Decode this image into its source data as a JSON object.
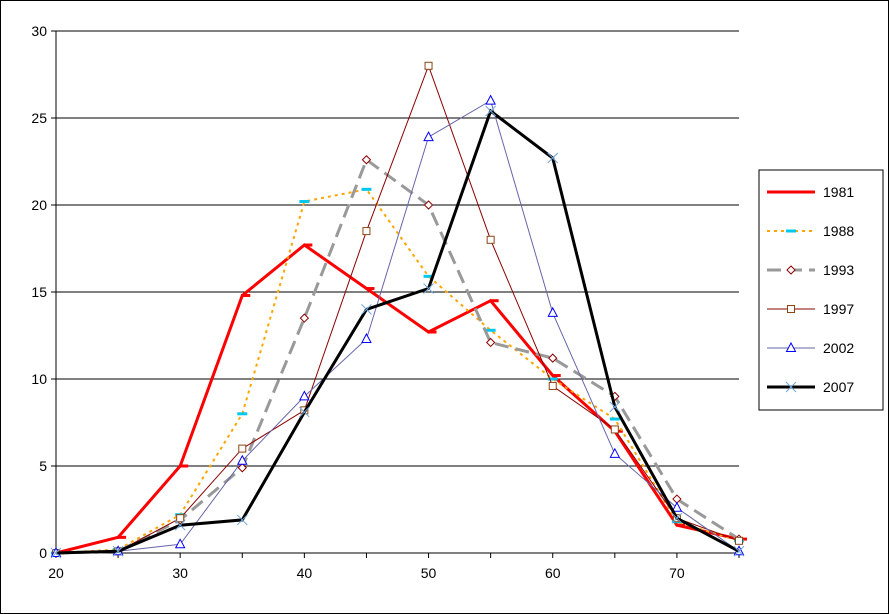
{
  "chart_data": {
    "type": "line",
    "title": "",
    "xlabel": "",
    "ylabel": "",
    "xlim": [
      20,
      75
    ],
    "ylim": [
      0,
      30
    ],
    "x_ticks": [
      20,
      30,
      40,
      50,
      60,
      70
    ],
    "y_ticks": [
      0,
      5,
      10,
      15,
      20,
      25,
      30
    ],
    "x_tick_labels": [
      "20",
      "30",
      "40",
      "50",
      "60",
      "70"
    ],
    "y_tick_labels": [
      "0",
      "5",
      "10",
      "15",
      "20",
      "25",
      "30"
    ],
    "grid": "horizontal",
    "legend_position": "right",
    "x": [
      20,
      25,
      30,
      35,
      40,
      45,
      50,
      55,
      60,
      65,
      70,
      75
    ],
    "series": [
      {
        "name": "1981",
        "color": "#ff0000",
        "dash": "solid",
        "marker": "dash",
        "width": 3,
        "values": [
          0,
          0.9,
          5,
          14.8,
          17.7,
          15.2,
          12.7,
          14.5,
          10.2,
          7,
          1.6,
          0.8
        ]
      },
      {
        "name": "1988",
        "color": "#ffa500",
        "dash": "dot",
        "marker": "dash-cyan",
        "width": 2,
        "values": [
          0,
          0.2,
          2.2,
          8,
          20.2,
          20.9,
          15.9,
          12.8,
          10,
          7.7,
          1.8,
          0.7
        ]
      },
      {
        "name": "1993",
        "color": "#999999",
        "dash": "longdash",
        "marker": "diamond",
        "width": 3,
        "values": [
          0,
          0.1,
          1.9,
          4.9,
          13.5,
          22.6,
          20,
          12.1,
          11.2,
          9,
          3.1,
          0.8
        ]
      },
      {
        "name": "1997",
        "color": "#8b0000",
        "dash": "solid",
        "marker": "square",
        "width": 1,
        "values": [
          0,
          0.1,
          2,
          6,
          8.2,
          18.5,
          28,
          18,
          9.6,
          7.1,
          2,
          0.7
        ]
      },
      {
        "name": "2002",
        "color": "#6666aa",
        "dash": "solid",
        "marker": "triangle",
        "width": 1,
        "values": [
          0,
          0.1,
          0.5,
          5.3,
          9,
          12.3,
          23.9,
          26,
          13.8,
          5.7,
          2.6,
          0.1
        ]
      },
      {
        "name": "2007",
        "color": "#000000",
        "dash": "solid",
        "marker": "x",
        "width": 3,
        "values": [
          0,
          0.1,
          1.6,
          1.9,
          8.1,
          14,
          15.2,
          25.4,
          22.7,
          8.4,
          2,
          0.1
        ]
      }
    ]
  }
}
